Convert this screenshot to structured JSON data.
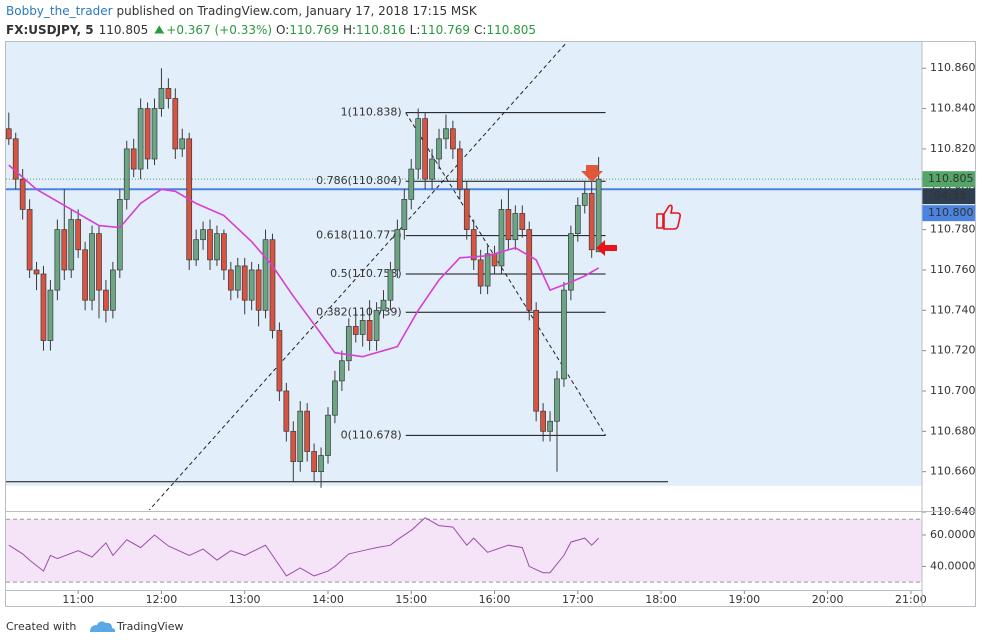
{
  "header": {
    "author": "Bobby_the_trader",
    "published": "published on TradingView.com, January 17, 2018 17:15 MSK",
    "symbol": "FX:USDJPY, 5",
    "price": "110.805",
    "change": "+0.367 (+0.33%)",
    "open_label": "O:",
    "open": "110.769",
    "high_label": "H:",
    "high": "110.816",
    "low_label": "L:",
    "low": "110.769",
    "close_label": "C:",
    "close": "110.805"
  },
  "footer": {
    "created": "Created with",
    "brand": "TradingView"
  },
  "chart_data": [
    {
      "type": "candlestick",
      "up_color": "#6ba583",
      "down_color": "#d75442",
      "x": [
        "10:10",
        "10:15",
        "10:20",
        "10:25",
        "10:30",
        "10:35",
        "10:40",
        "10:45",
        "10:50",
        "10:55",
        "11:00",
        "11:05",
        "11:10",
        "11:15",
        "11:20",
        "11:25",
        "11:30",
        "11:35",
        "11:40",
        "11:45",
        "11:50",
        "11:55",
        "12:00",
        "12:05",
        "12:10",
        "12:15",
        "12:20",
        "12:25",
        "12:30",
        "12:35",
        "12:40",
        "12:45",
        "12:50",
        "12:55",
        "13:00",
        "13:05",
        "13:10",
        "13:15",
        "13:20",
        "13:25",
        "13:30",
        "13:35",
        "13:40",
        "13:45",
        "13:50",
        "13:55",
        "14:00",
        "14:05",
        "14:10",
        "14:15",
        "14:20",
        "14:25",
        "14:30",
        "14:35",
        "14:40",
        "14:45",
        "14:50",
        "14:55",
        "15:00",
        "15:05",
        "15:10",
        "15:15",
        "15:20",
        "15:25",
        "15:30",
        "15:35",
        "15:40",
        "15:45",
        "15:50",
        "15:55",
        "16:00",
        "16:05",
        "16:10",
        "16:15",
        "16:20",
        "16:25",
        "16:30",
        "16:35",
        "16:40",
        "16:45",
        "16:50",
        "16:55",
        "17:00",
        "17:05",
        "17:10",
        "17:15"
      ],
      "open": [
        110.83,
        110.825,
        110.805,
        110.79,
        110.76,
        110.758,
        110.725,
        110.75,
        110.78,
        110.76,
        110.785,
        110.77,
        110.745,
        110.778,
        110.75,
        110.74,
        110.76,
        110.795,
        110.82,
        110.81,
        110.84,
        110.815,
        110.84,
        110.85,
        110.845,
        110.82,
        110.825,
        110.765,
        110.775,
        110.78,
        110.765,
        110.778,
        110.76,
        110.75,
        110.762,
        110.745,
        110.76,
        110.74,
        110.775,
        110.73,
        110.7,
        110.68,
        110.665,
        110.69,
        110.67,
        110.66,
        110.668,
        110.688,
        110.705,
        110.715,
        110.732,
        110.728,
        110.735,
        110.725,
        110.74,
        110.745,
        110.76,
        110.78,
        110.795,
        110.81,
        110.835,
        110.805,
        110.815,
        110.825,
        110.83,
        110.82,
        110.8,
        110.78,
        110.765,
        110.752,
        110.768,
        110.762,
        110.79,
        110.775,
        110.788,
        110.78,
        110.74,
        110.69,
        110.68,
        110.685,
        110.706,
        110.75,
        110.778,
        110.792,
        110.798,
        110.769
      ],
      "high": [
        110.838,
        110.828,
        110.81,
        110.795,
        110.764,
        110.762,
        110.755,
        110.785,
        110.8,
        110.79,
        110.79,
        110.774,
        110.782,
        110.782,
        110.755,
        110.764,
        110.8,
        110.824,
        110.825,
        110.845,
        110.843,
        110.845,
        110.86,
        110.855,
        110.85,
        110.83,
        110.828,
        110.78,
        110.784,
        110.785,
        110.782,
        110.78,
        110.764,
        110.766,
        110.766,
        110.764,
        110.763,
        110.78,
        110.778,
        110.734,
        110.704,
        110.685,
        110.695,
        110.694,
        110.674,
        110.672,
        110.692,
        110.71,
        110.72,
        110.736,
        110.74,
        110.74,
        110.745,
        110.744,
        110.75,
        110.764,
        110.785,
        110.8,
        110.815,
        110.84,
        110.838,
        110.82,
        110.83,
        110.837,
        110.834,
        110.824,
        110.804,
        110.785,
        110.77,
        110.772,
        110.772,
        110.795,
        110.8,
        110.792,
        110.792,
        110.784,
        110.744,
        110.694,
        110.69,
        110.71,
        110.754,
        110.782,
        110.796,
        110.804,
        110.808,
        110.816
      ],
      "low": [
        110.822,
        110.8,
        110.785,
        110.756,
        110.75,
        110.72,
        110.72,
        110.745,
        110.755,
        110.756,
        110.766,
        110.74,
        110.74,
        110.736,
        110.734,
        110.736,
        110.756,
        110.79,
        110.806,
        110.805,
        110.81,
        110.812,
        110.836,
        110.84,
        110.815,
        110.816,
        110.76,
        110.762,
        110.77,
        110.76,
        110.762,
        110.755,
        110.745,
        110.746,
        110.738,
        110.74,
        110.732,
        110.736,
        110.726,
        110.695,
        110.675,
        110.655,
        110.66,
        110.665,
        110.655,
        110.652,
        110.664,
        110.684,
        110.7,
        110.71,
        110.724,
        110.722,
        110.72,
        110.72,
        110.736,
        110.74,
        110.756,
        110.775,
        110.79,
        110.805,
        110.8,
        110.8,
        110.81,
        110.82,
        110.815,
        110.795,
        110.775,
        110.76,
        110.748,
        110.748,
        110.758,
        110.758,
        110.77,
        110.77,
        110.776,
        110.735,
        110.685,
        110.675,
        110.675,
        110.66,
        110.702,
        110.745,
        110.774,
        110.788,
        110.766,
        110.769
      ],
      "close": [
        110.825,
        110.805,
        110.79,
        110.76,
        110.758,
        110.725,
        110.75,
        110.78,
        110.76,
        110.785,
        110.77,
        110.745,
        110.778,
        110.75,
        110.74,
        110.76,
        110.795,
        110.82,
        110.81,
        110.84,
        110.815,
        110.84,
        110.85,
        110.845,
        110.82,
        110.825,
        110.765,
        110.775,
        110.78,
        110.765,
        110.778,
        110.76,
        110.75,
        110.762,
        110.745,
        110.76,
        110.74,
        110.775,
        110.73,
        110.7,
        110.68,
        110.665,
        110.69,
        110.67,
        110.66,
        110.668,
        110.688,
        110.705,
        110.715,
        110.732,
        110.728,
        110.735,
        110.725,
        110.74,
        110.745,
        110.76,
        110.78,
        110.795,
        110.81,
        110.835,
        110.805,
        110.815,
        110.825,
        110.83,
        110.82,
        110.8,
        110.78,
        110.765,
        110.752,
        110.768,
        110.762,
        110.79,
        110.775,
        110.788,
        110.78,
        110.74,
        110.69,
        110.68,
        110.685,
        110.706,
        110.75,
        110.778,
        110.792,
        110.798,
        110.77,
        110.805
      ],
      "ma": {
        "color": "#d63fd3",
        "x": [
          "10:10",
          "10:30",
          "10:50",
          "11:15",
          "11:30",
          "11:45",
          "12:00",
          "12:10",
          "12:25",
          "12:45",
          "13:05",
          "13:20",
          "13:35",
          "13:50",
          "14:05",
          "14:25",
          "14:50",
          "15:05",
          "15:20",
          "15:35",
          "15:55",
          "16:15",
          "16:30",
          "16:40",
          "16:55",
          "17:05",
          "17:15"
        ],
        "values": [
          110.812,
          110.8,
          110.792,
          110.782,
          110.781,
          110.793,
          110.8,
          110.799,
          110.793,
          110.787,
          110.774,
          110.762,
          110.747,
          110.733,
          110.719,
          110.717,
          110.722,
          110.74,
          110.755,
          110.766,
          110.767,
          110.771,
          110.765,
          110.75,
          110.754,
          110.757,
          110.761
        ]
      },
      "xlim": [
        "10:08",
        "21:08"
      ],
      "xticks": [
        "11:00",
        "12:00",
        "13:00",
        "14:00",
        "15:00",
        "16:00",
        "17:00",
        "18:00",
        "19:00",
        "20:00",
        "21:00"
      ],
      "ylim": [
        110.641,
        110.873
      ],
      "yticks": [
        {
          "value": 110.86,
          "label": "110.860"
        },
        {
          "value": 110.84,
          "label": "110.840"
        },
        {
          "value": 110.82,
          "label": "110.820"
        },
        {
          "value": 110.8,
          "label": "110.800"
        },
        {
          "value": 110.78,
          "label": "110.780"
        },
        {
          "value": 110.76,
          "label": "110.760"
        },
        {
          "value": 110.74,
          "label": "110.740"
        },
        {
          "value": 110.72,
          "label": "110.720"
        },
        {
          "value": 110.7,
          "label": "110.700"
        },
        {
          "value": 110.68,
          "label": "110.680"
        },
        {
          "value": 110.66,
          "label": "110.660"
        },
        {
          "value": 110.64,
          "label": "110.640"
        }
      ],
      "shaded_zone": {
        "low": 110.653,
        "color": "#e3eefb"
      },
      "last_price": {
        "value": 110.805,
        "label": "110.805",
        "countdown": "04:33",
        "color": "#53a568"
      },
      "hline": {
        "value": 110.8,
        "label": "110.800",
        "color": "#4a84e0"
      },
      "support_line": {
        "value": 110.655,
        "from": "10:08",
        "to": "18:05"
      },
      "trend_line": {
        "from": [
          "11:50",
          110.64
        ],
        "to": [
          "16:51",
          110.872
        ]
      },
      "fib": {
        "from": "14:56",
        "to": "17:20",
        "levels": [
          {
            "price": 110.838,
            "label": "1(110.838)"
          },
          {
            "price": 110.804,
            "label": "0.786(110.804)"
          },
          {
            "price": 110.777,
            "label": "0.618(110.777)"
          },
          {
            "price": 110.758,
            "label": "0.5(110.758)"
          },
          {
            "price": 110.739,
            "label": "0.382(110.739)"
          },
          {
            "price": 110.678,
            "label": "0(110.678)"
          }
        ]
      }
    },
    {
      "type": "line",
      "band_color": "#f5e4f7",
      "series": [
        {
          "color": "#9c4fa8",
          "x": [
            "10:10",
            "10:20",
            "10:25",
            "10:35",
            "10:40",
            "10:45",
            "11:00",
            "11:10",
            "11:20",
            "11:25",
            "11:35",
            "11:45",
            "11:55",
            "12:05",
            "12:20",
            "12:30",
            "12:40",
            "12:50",
            "13:00",
            "13:15",
            "13:20",
            "13:30",
            "13:40",
            "13:50",
            "14:00",
            "14:05",
            "14:15",
            "14:25",
            "14:35",
            "14:45",
            "14:50",
            "15:00",
            "15:10",
            "15:20",
            "15:30",
            "15:40",
            "15:45",
            "15:55",
            "16:10",
            "16:20",
            "16:25",
            "16:35",
            "16:40",
            "16:50",
            "16:55",
            "17:05",
            "17:10",
            "17:15"
          ],
          "values": [
            53.5,
            48,
            44,
            37,
            47,
            45,
            50,
            46,
            55,
            47,
            57,
            52,
            60,
            53,
            47,
            51,
            44,
            50,
            47,
            53.5,
            47,
            34,
            39,
            34,
            37,
            40,
            48,
            50,
            52,
            53.5,
            57,
            63,
            71,
            66,
            65,
            53.5,
            58,
            49,
            53.5,
            52,
            40,
            36,
            36,
            47,
            55.5,
            58,
            53.5,
            58
          ]
        }
      ],
      "ylim": [
        25,
        74
      ],
      "yticks": [
        {
          "value": 60,
          "label": "60.0000"
        },
        {
          "value": 40,
          "label": "40.0000"
        }
      ],
      "levels": [
        70,
        30
      ]
    }
  ]
}
